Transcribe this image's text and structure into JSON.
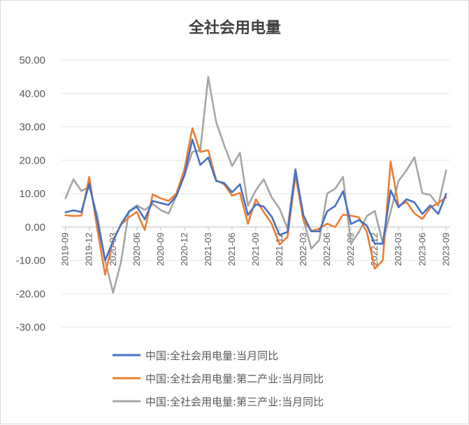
{
  "chart_data": {
    "type": "line",
    "title": "全社会用电量",
    "xlabel": "",
    "ylabel": "",
    "ylim": [
      -30,
      50
    ],
    "yticks": [
      "50.00",
      "40.00",
      "30.00",
      "20.00",
      "10.00",
      "0.00",
      "-10.00",
      "-20.00",
      "-30.00"
    ],
    "ytick_values": [
      50,
      40,
      30,
      20,
      10,
      0,
      -10,
      -20,
      -30
    ],
    "x_labels": [
      "2019-09",
      "2019-12",
      "2020-03",
      "2020-06",
      "2020-09",
      "2020-12",
      "2021-03",
      "2021-06",
      "2021-09",
      "2021-12",
      "2022-03",
      "2022-06",
      "2022-09",
      "2022-12",
      "2023-03",
      "2023-06",
      "2023-09"
    ],
    "x": [
      "2019-09",
      "2019-10",
      "2019-11",
      "2019-12",
      "2020-01",
      "2020-02",
      "2020-03",
      "2020-04",
      "2020-05",
      "2020-06",
      "2020-07",
      "2020-08",
      "2020-09",
      "2020-10",
      "2020-11",
      "2020-12",
      "2021-01",
      "2021-02",
      "2021-03",
      "2021-04",
      "2021-05",
      "2021-06",
      "2021-07",
      "2021-08",
      "2021-09",
      "2021-10",
      "2021-11",
      "2021-12",
      "2022-01",
      "2022-02",
      "2022-03",
      "2022-04",
      "2022-05",
      "2022-06",
      "2022-07",
      "2022-08",
      "2022-09",
      "2022-10",
      "2022-11",
      "2022-12",
      "2023-01",
      "2023-02",
      "2023-03",
      "2023-04",
      "2023-05",
      "2023-06",
      "2023-07",
      "2023-08",
      "2023-09"
    ],
    "grid": true,
    "legend_position": "bottom",
    "series": [
      {
        "name": "中国:全社会用电量:当月同比",
        "color": "#4472c4",
        "values": [
          4.4,
          5.0,
          4.5,
          13.0,
          2.0,
          -10.0,
          -4.2,
          0.8,
          4.6,
          6.1,
          2.3,
          7.8,
          7.2,
          6.6,
          9.4,
          15.5,
          26.2,
          18.6,
          20.8,
          13.8,
          13.2,
          10.4,
          12.8,
          3.6,
          6.8,
          6.1,
          3.1,
          -2.4,
          -1.5,
          17.0,
          3.5,
          -1.3,
          -1.3,
          4.7,
          6.3,
          10.7,
          0.9,
          2.1,
          0.4,
          -5.0,
          -5.0,
          11.0,
          5.9,
          8.3,
          7.4,
          3.9,
          6.5,
          3.9,
          9.9
        ]
      },
      {
        "name": "中国:全社会用电量:第二产业:当月同比",
        "color": "#ed7d31",
        "values": [
          3.5,
          3.3,
          3.4,
          15.0,
          -0.5,
          -14.3,
          -3.9,
          0.7,
          2.9,
          4.5,
          -0.9,
          9.8,
          8.6,
          7.8,
          10.1,
          17.3,
          29.6,
          22.5,
          23.0,
          14.0,
          12.8,
          9.4,
          10.2,
          1.0,
          8.3,
          4.5,
          1.0,
          -5.2,
          -3.0,
          15.5,
          2.0,
          -1.2,
          -0.5,
          1.0,
          0.0,
          3.7,
          3.4,
          2.9,
          -1.5,
          -12.5,
          -10.0,
          19.6,
          6.3,
          7.5,
          4.1,
          2.4,
          5.8,
          7.2,
          8.9
        ]
      },
      {
        "name": "中国:全社会用电量:第三产业:当月同比",
        "color": "#a5a5a5",
        "values": [
          8.6,
          14.3,
          10.8,
          12.0,
          3.5,
          -10.0,
          -19.7,
          -10.5,
          4.7,
          6.5,
          5.1,
          6.9,
          5.1,
          4.0,
          9.4,
          15.5,
          22.5,
          23.0,
          45.0,
          31.4,
          24.6,
          18.3,
          22.2,
          6.4,
          11.0,
          14.3,
          8.9,
          5.5,
          -0.5,
          17.4,
          2.3,
          -6.5,
          -3.9,
          10.0,
          11.5,
          15.0,
          -5.0,
          -1.5,
          3.3,
          4.8,
          -4.8,
          4.6,
          13.8,
          17.0,
          20.9,
          10.1,
          9.6,
          6.4,
          17.0
        ]
      }
    ]
  }
}
